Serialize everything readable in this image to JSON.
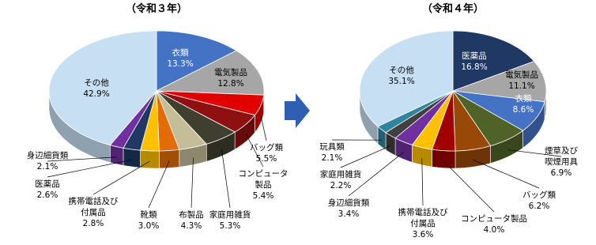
{
  "chart_data": [
    {
      "type": "pie",
      "title": "（令和３年）",
      "categories": [
        "衣類",
        "電気製品",
        "バッグ類",
        "コンピュータ\n製品",
        "家庭用雑貨",
        "布製品",
        "靴類",
        "携帯電話及び\n付属品",
        "医薬品",
        "身辺細貨類",
        "その他"
      ],
      "values": [
        13.3,
        12.8,
        5.5,
        5.4,
        5.3,
        4.3,
        3.0,
        2.8,
        2.6,
        2.1,
        42.9
      ],
      "value_labels": [
        "13.3%",
        "12.8%",
        "5.5%",
        "5.4%",
        "5.3%",
        "4.3%",
        "3.0%",
        "2.8%",
        "2.6%",
        "2.1%",
        "42.9%"
      ],
      "colors": [
        "#4472c4",
        "#a6a6a6",
        "#e00000",
        "#8e1010",
        "#3f3f2f",
        "#c4bd97",
        "#e36c09",
        "#ffc000",
        "#1f3864",
        "#7030a0",
        "#c6dff2"
      ]
    },
    {
      "type": "pie",
      "title": "（令和４年）",
      "categories": [
        "医薬品",
        "電気製品",
        "衣類",
        "煙草及び\n喫煙用具",
        "バッグ類",
        "コンピュータ製品",
        "携帯電話及び\n付属品",
        "身辺細貨類",
        "家庭用雑貨",
        "玩具類",
        "その他"
      ],
      "values": [
        16.8,
        11.1,
        8.6,
        6.9,
        6.2,
        4.0,
        3.6,
        3.4,
        2.2,
        2.1,
        35.1
      ],
      "value_labels": [
        "16.8%",
        "11.1%",
        "8.6%",
        "6.9%",
        "6.2%",
        "4.0%",
        "3.6%",
        "3.4%",
        "2.2%",
        "2.1%",
        "35.1%"
      ],
      "colors": [
        "#1f3864",
        "#a6a6a6",
        "#4472c4",
        "#4f6228",
        "#984807",
        "#a00000",
        "#ffc000",
        "#7030a0",
        "#404040",
        "#31849b",
        "#c6dff2"
      ]
    }
  ]
}
